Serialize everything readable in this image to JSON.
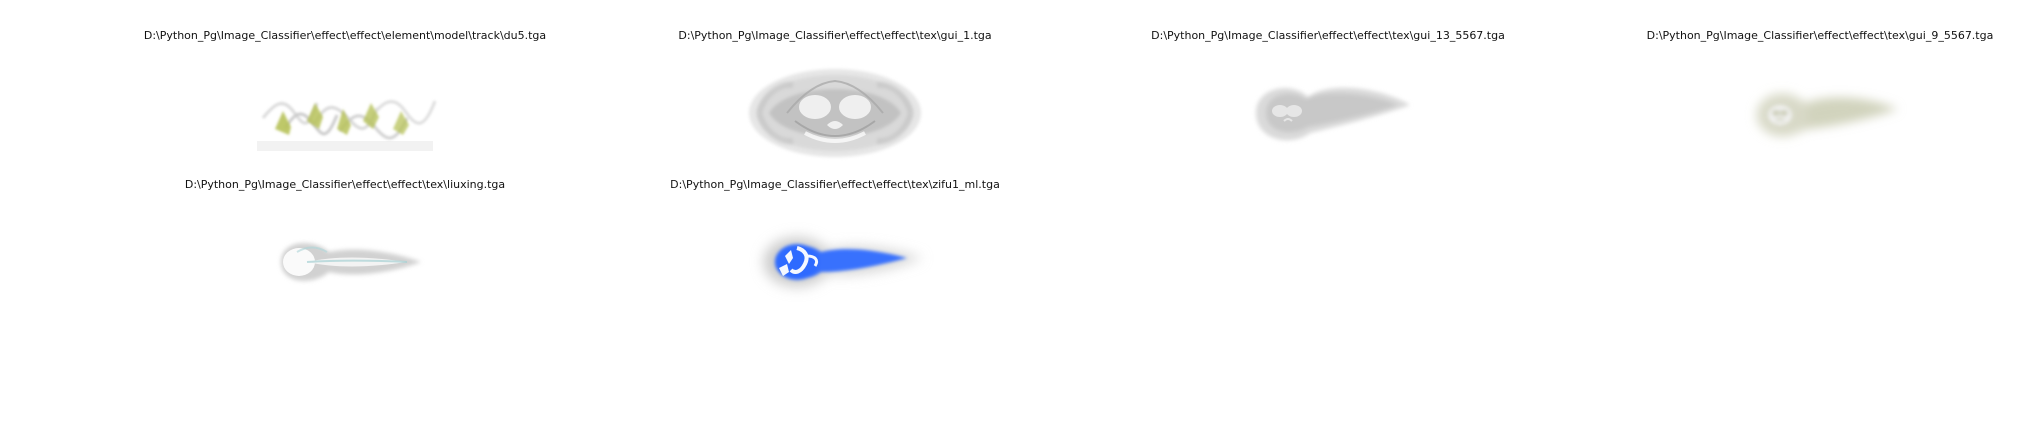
{
  "figure": {
    "items": [
      {
        "caption": "D:\\Python_Pg\\Image_Classifier\\effect\\effect\\element\\model\\track\\du5.tga",
        "image": "du5-texture"
      },
      {
        "caption": "D:\\Python_Pg\\Image_Classifier\\effect\\effect\\tex\\gui_1.tga",
        "image": "gui_1-texture"
      },
      {
        "caption": "D:\\Python_Pg\\Image_Classifier\\effect\\effect\\tex\\gui_13_5567.tga",
        "image": "gui_13_5567-texture"
      },
      {
        "caption": "D:\\Python_Pg\\Image_Classifier\\effect\\effect\\tex\\gui_9_5567.tga",
        "image": "gui_9_5567-texture"
      },
      {
        "caption": "D:\\Python_Pg\\Image_Classifier\\effect\\effect\\tex\\liuxing.tga",
        "image": "liuxing-texture"
      },
      {
        "caption": "D:\\Python_Pg\\Image_Classifier\\effect\\effect\\tex\\zifu1_ml.tga",
        "image": "zifu1_ml-texture"
      }
    ]
  },
  "colors": {
    "background": "#ffffff",
    "caption_text": "#111111",
    "green_streaks": "#b7c25a",
    "gray_smoke": "#b9b9b9",
    "olive_glow": "#c9cbb2",
    "blue_comet": "#2f6bff"
  }
}
